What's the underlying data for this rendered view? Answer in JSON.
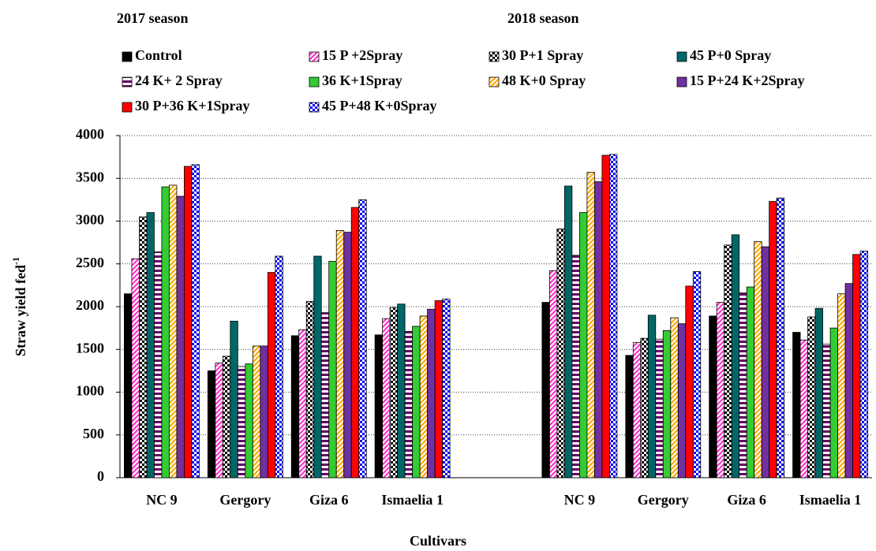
{
  "chart_data": {
    "type": "bar",
    "annotations": [
      "2017 season",
      "2018 season"
    ],
    "ylabel": "Straw yield fed",
    "ylabel_sup": "-1",
    "xlabel": "Cultivars",
    "categories": [
      "NC 9",
      "Gergory",
      "Giza 6",
      "Ismaelia 1",
      null,
      "NC 9",
      "Gergory",
      "Giza 6",
      "Ismaelia 1"
    ],
    "ylim": [
      0,
      4000
    ],
    "yticks": [
      0,
      500,
      1000,
      1500,
      2000,
      2500,
      3000,
      3500,
      4000
    ],
    "grid": true,
    "series": [
      {
        "name": "Control",
        "color": "#000000",
        "pattern": "solid",
        "values": [
          2150,
          1250,
          1660,
          1670,
          null,
          2050,
          1430,
          1890,
          1700
        ]
      },
      {
        "name": "15 P +2Spray",
        "color": "#ff33cc",
        "pattern": "diagonal",
        "values": [
          2560,
          1340,
          1730,
          1860,
          null,
          2420,
          1580,
          2050,
          1610
        ]
      },
      {
        "name": "30 P+1 Spray",
        "color": "#000000",
        "pattern": "check",
        "values": [
          3050,
          1420,
          2060,
          1990,
          null,
          2910,
          1630,
          2720,
          1880
        ]
      },
      {
        "name": "45 P+0 Spray",
        "color": "#006666",
        "pattern": "solid",
        "values": [
          3100,
          1830,
          2590,
          2030,
          null,
          3410,
          1900,
          2840,
          1980
        ]
      },
      {
        "name": "24 K+ 2 Spray",
        "color": "#660066",
        "pattern": "hstripe",
        "values": [
          2640,
          1300,
          1930,
          1710,
          null,
          2600,
          1620,
          2160,
          1560
        ]
      },
      {
        "name": "36 K+1Spray",
        "color": "#33cc33",
        "pattern": "solid",
        "values": [
          3400,
          1330,
          2530,
          1770,
          null,
          3100,
          1720,
          2230,
          1750
        ]
      },
      {
        "name": "48 K+0 Spray",
        "color": "#ffaa00",
        "pattern": "diagonal",
        "values": [
          3420,
          1540,
          2890,
          1890,
          null,
          3570,
          1870,
          2760,
          2150
        ]
      },
      {
        "name": "15 P+24 K+2Spray",
        "color": "#7030a0",
        "pattern": "solid",
        "values": [
          3290,
          1540,
          2870,
          1970,
          null,
          3460,
          1800,
          2700,
          2270
        ]
      },
      {
        "name": "30 P+36 K+1Spray",
        "color": "#ff0000",
        "pattern": "solid",
        "values": [
          3640,
          2400,
          3160,
          2070,
          null,
          3770,
          2240,
          3230,
          2610
        ]
      },
      {
        "name": "45 P+48 K+0Spray",
        "color": "#0000ff",
        "pattern": "check",
        "values": [
          3660,
          2590,
          3250,
          2090,
          null,
          3780,
          2410,
          3270,
          2650
        ]
      }
    ]
  }
}
